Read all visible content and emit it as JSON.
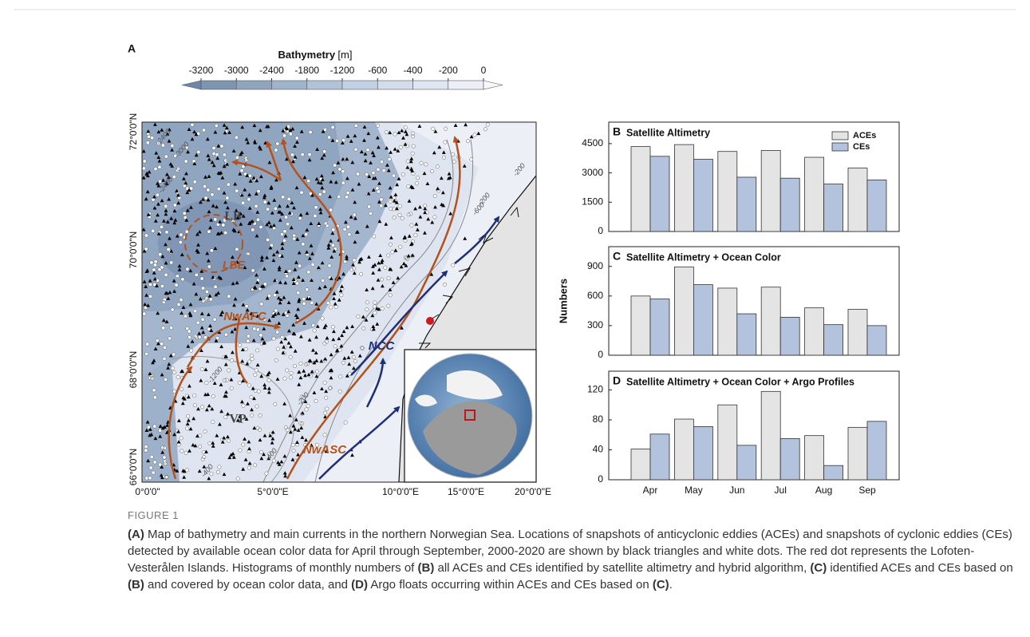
{
  "map": {
    "panel": "A",
    "colorbar": {
      "title": "Bathymetry",
      "unit": "[m]",
      "ticks": [
        -3200,
        -3000,
        -2400,
        -1800,
        -1200,
        -600,
        -400,
        -200,
        0
      ],
      "colors": [
        "#6f87a6",
        "#7e95b2",
        "#8fa4bf",
        "#a0b3cc",
        "#b2c2d8",
        "#c4d0e3",
        "#d3dcea",
        "#e0e6f1",
        "#eceff7",
        "#f7f8fc"
      ]
    },
    "lat_labels": [
      "72°0'0\"N",
      "70°0'0\"N",
      "68°0'0\"N",
      "66°0'0\"N"
    ],
    "lon_labels": [
      "0°0'0\"",
      "5°0'0\"E",
      "10°0'0\"E",
      "15°0'0\"E",
      "20°0'0\"E"
    ],
    "feature_labels": [
      "LB",
      "LBE",
      "NwAFC",
      "VP",
      "NwASC",
      "NCC"
    ],
    "contour_labels": [
      "-2400",
      "-3000",
      "-2400",
      "-200",
      "-600",
      "-200",
      "-1200",
      "-400",
      "-400",
      "-200"
    ]
  },
  "chart_data": [
    {
      "type": "bar",
      "panel": "B",
      "title": "Satellite Altimetry",
      "series": [
        {
          "name": "ACEs",
          "color": "#e4e4e4",
          "values": [
            4350,
            4450,
            4100,
            4150,
            3800,
            3250
          ]
        },
        {
          "name": "CEs",
          "color": "#b3c2dd",
          "values": [
            3850,
            3700,
            2780,
            2730,
            2430,
            2640
          ]
        }
      ],
      "ylim": [
        0,
        5600
      ],
      "yticks": [
        0,
        1500,
        3000,
        4500
      ],
      "legend": "upper right"
    },
    {
      "type": "bar",
      "panel": "C",
      "title": "Satellite Altimetry + Ocean Color",
      "ylabel": "Numbers",
      "series": [
        {
          "color": "#e4e4e4",
          "values": [
            600,
            895,
            680,
            690,
            480,
            465
          ]
        },
        {
          "color": "#b3c2dd",
          "values": [
            570,
            715,
            420,
            385,
            310,
            300
          ]
        }
      ],
      "ylim": [
        0,
        1100
      ],
      "yticks": [
        0,
        300,
        600,
        900
      ]
    },
    {
      "type": "bar",
      "panel": "D",
      "title": "Satellite Altimetry + Ocean Color + Argo Profiles",
      "categories": [
        "Apr",
        "May",
        "Jun",
        "Jul",
        "Aug",
        "Sep"
      ],
      "series": [
        {
          "color": "#e4e4e4",
          "values": [
            41,
            81,
            100,
            118,
            59,
            70
          ]
        },
        {
          "color": "#b3c2dd",
          "values": [
            61,
            71,
            46,
            55,
            19,
            78
          ]
        }
      ],
      "ylim": [
        0,
        145
      ],
      "yticks": [
        0,
        40,
        80,
        120
      ]
    }
  ],
  "caption": {
    "label": "FIGURE 1",
    "segments": [
      {
        "text": "(A)",
        "bold": true
      },
      {
        "text": " Map of bathymetry and main currents in the northern Norwegian Sea. Locations of snapshots of anticyclonic eddies (ACEs) and snapshots of cyclonic eddies (CEs) detected by available ocean color data for April through September, 2000-2020 are shown by black triangles and white dots. The red dot represents the Lofoten-Vesterålen Islands. Histograms of monthly numbers of ",
        "bold": false
      },
      {
        "text": "(B)",
        "bold": true
      },
      {
        "text": " all ACEs and CEs identified by satellite altimetry and hybrid algorithm, ",
        "bold": false
      },
      {
        "text": "(C)",
        "bold": true
      },
      {
        "text": " identified ACEs and CEs based on ",
        "bold": false
      },
      {
        "text": "(B)",
        "bold": true
      },
      {
        "text": " and covered by ocean color data, and ",
        "bold": false
      },
      {
        "text": "(D)",
        "bold": true
      },
      {
        "text": " Argo floats occurring within ACEs and CEs based on ",
        "bold": false
      },
      {
        "text": "(C)",
        "bold": true
      },
      {
        "text": ".",
        "bold": false
      }
    ]
  }
}
